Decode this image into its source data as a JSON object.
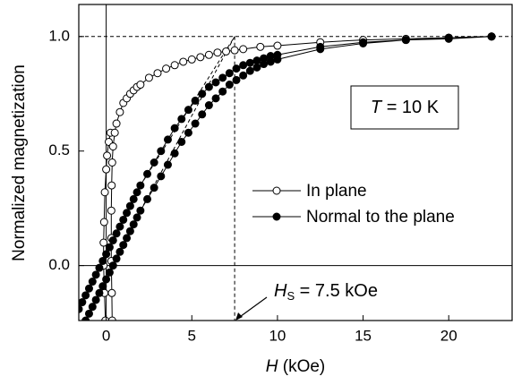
{
  "chart_data": {
    "type": "line",
    "y_label": "Normalized magnetization",
    "x_label": {
      "symbol": "H",
      "text": " (kOe)"
    },
    "xlim": [
      -1.6,
      23.7
    ],
    "ylim": [
      -0.24,
      1.14
    ],
    "xticks": [
      0,
      5,
      10,
      15,
      20
    ],
    "yticks": [
      {
        "value": 0,
        "label": "0.0"
      },
      {
        "value": 0.5,
        "label": "0.5"
      },
      {
        "value": 1,
        "label": "1.0"
      }
    ],
    "zero_lines": {
      "x": 0,
      "y": 0
    },
    "reference_lines": {
      "x": 7.5,
      "y": 1.0
    },
    "extrapolation_lines": [
      {
        "x": [
          2,
          7.5
        ],
        "values": [
          0.35,
          1.0
        ]
      },
      {
        "x": [
          2,
          7.5
        ],
        "values": [
          0.24,
          1.0
        ]
      }
    ],
    "annotations": {
      "temperature": {
        "symbol": "T",
        "text": " = 10 K"
      },
      "saturation": {
        "symbol": "H",
        "subscript": "S",
        "text": " = 7.5 kOe"
      }
    },
    "series": [
      {
        "name": "In plane",
        "color": "#000000",
        "fill": "#ffffff",
        "x": [
          -0.05,
          -0.1,
          -0.15,
          -0.15,
          -0.12,
          -0.08,
          0.0,
          0.05,
          0.15,
          0.25,
          null,
          0.35,
          0.33,
          0.3,
          0.3,
          0.3,
          0.32,
          0.35,
          0.4,
          0.5,
          0.6,
          0.8,
          1.0,
          1.2,
          1.4,
          1.6,
          1.8,
          2.0,
          2.5,
          3,
          3.5,
          4,
          4.5,
          5,
          5.5,
          6,
          6.5,
          7,
          7.5,
          8,
          9,
          10,
          12.5,
          15,
          17.5,
          20,
          22.5
        ],
        "values": [
          -0.24,
          -0.12,
          0.0,
          0.1,
          0.19,
          0.32,
          0.42,
          0.48,
          0.54,
          0.58,
          null,
          -0.24,
          -0.12,
          0.02,
          0.12,
          0.24,
          0.35,
          0.45,
          0.52,
          0.58,
          0.62,
          0.67,
          0.71,
          0.73,
          0.75,
          0.765,
          0.78,
          0.79,
          0.82,
          0.84,
          0.86,
          0.875,
          0.89,
          0.9,
          0.91,
          0.92,
          0.93,
          0.935,
          0.94,
          0.945,
          0.955,
          0.96,
          0.975,
          0.985,
          0.99,
          0.995,
          1.0
        ]
      },
      {
        "name": "Normal to the plane",
        "color": "#000000",
        "fill": "#000000",
        "x": [
          -1.6,
          -1.4,
          -1.2,
          -1.0,
          -0.8,
          -0.6,
          -0.4,
          -0.2,
          0,
          0.2,
          0.4,
          0.6,
          0.8,
          1.0,
          1.2,
          1.4,
          1.6,
          1.8,
          2.0,
          2.4,
          2.8,
          3.2,
          3.6,
          4.0,
          4.4,
          4.8,
          5.2,
          5.6,
          6.0,
          6.4,
          6.8,
          7.2,
          7.6,
          8.0,
          8.4,
          8.8,
          9.2,
          9.6,
          10,
          12.5,
          15,
          17.5,
          20,
          22.5,
          null,
          -1.2,
          -1.0,
          -0.8,
          -0.6,
          -0.4,
          -0.2,
          0,
          0.2,
          0.4,
          0.6,
          0.8,
          1.0,
          1.2,
          1.4,
          1.6,
          1.8,
          2.0,
          2.4,
          2.8,
          3.2,
          3.6,
          4.0,
          4.4,
          4.8,
          5.2,
          5.6,
          6.0,
          6.4,
          6.8,
          7.2,
          7.6,
          8.0,
          8.4,
          8.8,
          9.2,
          9.6,
          10,
          12.5,
          15,
          17.5,
          20,
          22.5
        ],
        "values": [
          -0.19,
          -0.16,
          -0.13,
          -0.1,
          -0.07,
          -0.04,
          -0.01,
          0.02,
          0.05,
          0.08,
          0.11,
          0.14,
          0.17,
          0.2,
          0.23,
          0.26,
          0.29,
          0.32,
          0.35,
          0.4,
          0.45,
          0.5,
          0.55,
          0.6,
          0.64,
          0.68,
          0.72,
          0.75,
          0.78,
          0.8,
          0.82,
          0.84,
          0.86,
          0.875,
          0.885,
          0.895,
          0.905,
          0.915,
          0.92,
          0.955,
          0.975,
          0.985,
          0.995,
          1.0,
          null,
          -0.24,
          -0.21,
          -0.18,
          -0.15,
          -0.12,
          -0.09,
          -0.06,
          -0.03,
          0.0,
          0.03,
          0.06,
          0.09,
          0.12,
          0.15,
          0.18,
          0.21,
          0.24,
          0.29,
          0.34,
          0.39,
          0.44,
          0.49,
          0.54,
          0.58,
          0.62,
          0.66,
          0.7,
          0.73,
          0.76,
          0.79,
          0.81,
          0.83,
          0.85,
          0.865,
          0.88,
          0.89,
          0.9,
          0.945,
          0.97,
          0.985,
          0.99,
          1.0
        ]
      }
    ]
  }
}
